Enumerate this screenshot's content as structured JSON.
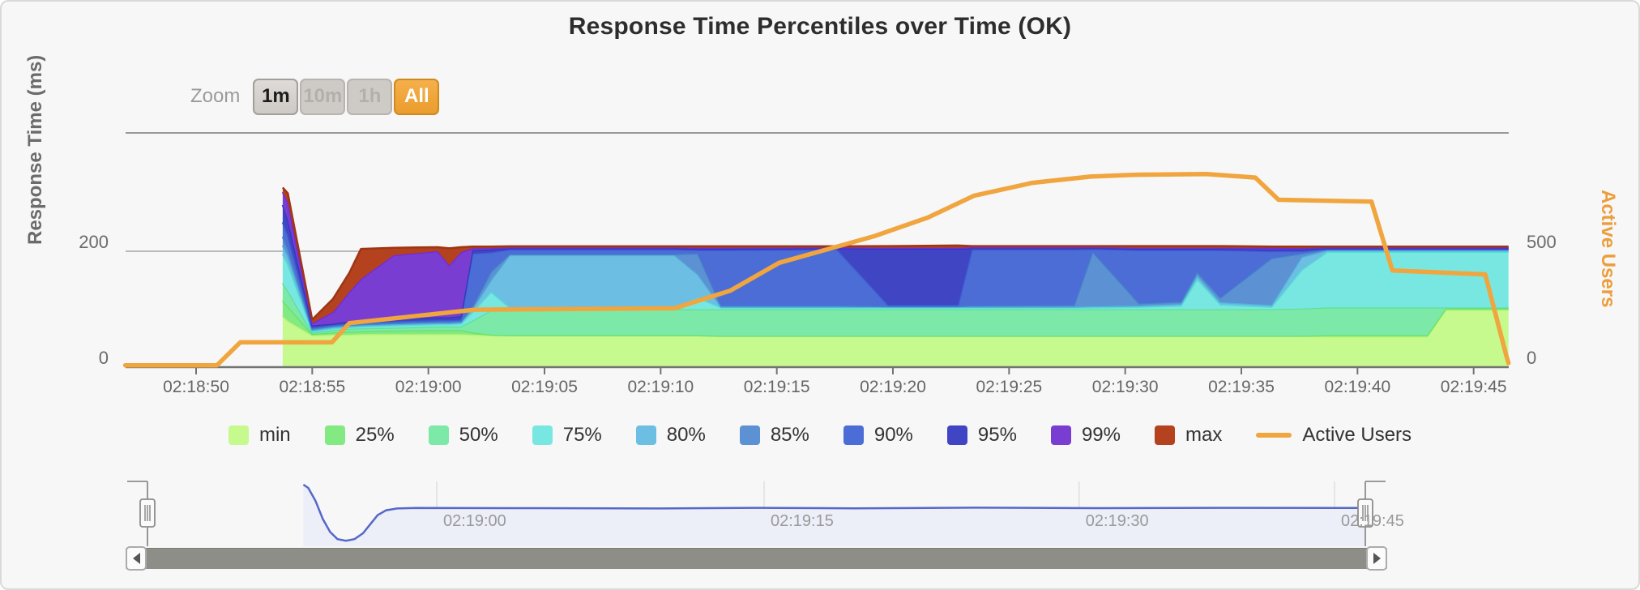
{
  "panel": {
    "title": "Response Time Percentiles over Time (OK)"
  },
  "zoom_controls": {
    "label": "Zoom",
    "buttons": [
      {
        "label": "1m",
        "state": "enabled"
      },
      {
        "label": "10m",
        "state": "disabled"
      },
      {
        "label": "1h",
        "state": "disabled"
      },
      {
        "label": "All",
        "state": "selected"
      }
    ]
  },
  "axes": {
    "left": {
      "title": "Response Time (ms)",
      "ticks": [
        {
          "value": 0,
          "label": "0"
        },
        {
          "value": 200,
          "label": "200"
        }
      ]
    },
    "right": {
      "title": "Active Users",
      "color": "#ec9d3c",
      "ticks": [
        {
          "value": 0,
          "label": "0"
        },
        {
          "value": 500,
          "label": "500"
        }
      ]
    },
    "x": {
      "labels": [
        "02:18:50",
        "02:18:55",
        "02:19:00",
        "02:19:05",
        "02:19:10",
        "02:19:15",
        "02:19:20",
        "02:19:25",
        "02:19:30",
        "02:19:35",
        "02:19:40",
        "02:19:45"
      ],
      "tick_interval_s": 5
    }
  },
  "legend": {
    "items": [
      {
        "label": "min",
        "color": "#c6f98e",
        "edge": "#b4f472"
      },
      {
        "label": "25%",
        "color": "#83e983",
        "edge": "#68e068"
      },
      {
        "label": "50%",
        "color": "#7de9a8",
        "edge": "#5ee093"
      },
      {
        "label": "75%",
        "color": "#79e7e1",
        "edge": "#52ded5"
      },
      {
        "label": "80%",
        "color": "#6cbfe2",
        "edge": "#53b2dc"
      },
      {
        "label": "85%",
        "color": "#5c92d3",
        "edge": "#4583ca"
      },
      {
        "label": "90%",
        "color": "#4c6dd5",
        "edge": "#3c5ed0"
      },
      {
        "label": "95%",
        "color": "#3f45c3",
        "edge": "#3238b8"
      },
      {
        "label": "99%",
        "color": "#7a3dd2",
        "edge": "#6a2ce2"
      },
      {
        "label": "max",
        "color": "#b4421e",
        "edge": "#9e3513"
      }
    ],
    "line_item": {
      "label": "Active Users",
      "color": "#f0a53e"
    }
  },
  "chart_data": {
    "type": "area",
    "title": "Response Time Percentiles over Time (OK)",
    "xlabel": "",
    "ylabel": "Response Time (ms)",
    "ylabel_right": "Active Users",
    "x_unit": "seconds after 02:18:50",
    "x_range": [
      -3.1,
      56.5
    ],
    "y_left_range_ms": [
      0,
      404
    ],
    "y_right_range_users": [
      0,
      1010
    ],
    "grid": "horizontal",
    "legend_position": "bottom",
    "series_labels": [
      "min",
      "25%",
      "50%",
      "75%",
      "80%",
      "85%",
      "90%",
      "95%",
      "99%",
      "max"
    ],
    "percentile_samples": [
      {
        "t": 3.73,
        "v": [
          88,
          115,
          145,
          195,
          210,
          225,
          250,
          280,
          302,
          310
        ]
      },
      {
        "t": 3.95,
        "v": [
          80,
          105,
          132,
          178,
          192,
          205,
          228,
          255,
          285,
          300
        ]
      },
      {
        "t": 5.0,
        "v": [
          55,
          57,
          59,
          62,
          64,
          66,
          69,
          72,
          76,
          82
        ]
      },
      {
        "t": 5.9,
        "v": [
          56,
          60,
          64,
          67,
          69,
          71,
          73,
          75,
          95,
          118
        ]
      },
      {
        "t": 6.6,
        "v": [
          56,
          61,
          66,
          69,
          71,
          73,
          76,
          79,
          130,
          163
        ]
      },
      {
        "t": 7.1,
        "v": [
          57,
          62,
          67,
          70,
          72,
          74,
          77,
          81,
          152,
          204
        ]
      },
      {
        "t": 8.5,
        "v": [
          57,
          63,
          68,
          72,
          74,
          76,
          79,
          84,
          193,
          206
        ]
      },
      {
        "t": 10.4,
        "v": [
          57,
          64,
          70,
          74,
          76,
          78,
          81,
          86,
          200,
          207
        ]
      },
      {
        "t": 10.9,
        "v": [
          57,
          64,
          70,
          74,
          76,
          78,
          81,
          86,
          176,
          205
        ]
      },
      {
        "t": 11.4,
        "v": [
          57,
          64,
          70,
          75,
          77,
          79,
          82,
          88,
          198,
          207
        ]
      },
      {
        "t": 11.9,
        "v": [
          56,
          60,
          80,
          95,
          100,
          104,
          196,
          202,
          205,
          208
        ]
      },
      {
        "t": 12.7,
        "v": [
          55,
          56,
          98,
          130,
          150,
          165,
          198,
          203,
          205.5,
          208
        ]
      },
      {
        "t": 13.5,
        "v": [
          55,
          55,
          100,
          103,
          193,
          195,
          203,
          205,
          206.5,
          208.5
        ]
      },
      {
        "t": 20.6,
        "v": [
          55,
          55,
          100,
          103,
          193,
          195,
          203,
          205,
          206.5,
          208.5
        ]
      },
      {
        "t": 21.6,
        "v": [
          55,
          55,
          100,
          120,
          160,
          196,
          202,
          204,
          206,
          208.5
        ]
      },
      {
        "t": 22.6,
        "v": [
          54,
          54,
          100,
          103,
          104,
          106,
          202,
          204,
          206,
          208.5
        ]
      },
      {
        "t": 27.6,
        "v": [
          54,
          54,
          100,
          103,
          104,
          106,
          203,
          205,
          206.5,
          208.5
        ]
      },
      {
        "t": 29.8,
        "v": [
          54,
          54,
          100,
          103,
          104,
          105,
          107,
          204,
          206,
          209
        ]
      },
      {
        "t": 32.8,
        "v": [
          54,
          54,
          100,
          103,
          104,
          105,
          107,
          204,
          206,
          210
        ]
      },
      {
        "t": 33.4,
        "v": [
          54,
          54,
          100,
          103,
          104,
          106,
          203,
          205,
          207,
          209
        ]
      },
      {
        "t": 37.8,
        "v": [
          54,
          54,
          100,
          103,
          104,
          107,
          203,
          205,
          207,
          209
        ]
      },
      {
        "t": 38.6,
        "v": [
          54,
          54,
          100,
          103,
          105,
          199,
          204,
          205.5,
          207,
          209
        ]
      },
      {
        "t": 40.6,
        "v": [
          54,
          54,
          100,
          104,
          106,
          110,
          202,
          204,
          206,
          209
        ]
      },
      {
        "t": 42.4,
        "v": [
          54,
          54,
          100,
          106,
          109,
          113,
          202,
          204,
          206,
          209
        ]
      },
      {
        "t": 43.1,
        "v": [
          54,
          54,
          100,
          152,
          158,
          164,
          202,
          204,
          206,
          209
        ]
      },
      {
        "t": 44.1,
        "v": [
          54,
          54,
          100,
          108,
          112,
          120,
          202,
          204,
          206,
          209
        ]
      },
      {
        "t": 46.3,
        "v": [
          54,
          54,
          100,
          104,
          107,
          188,
          200,
          203,
          206,
          208
        ]
      },
      {
        "t": 47.6,
        "v": [
          54,
          54,
          101,
          168,
          190,
          196,
          200,
          203,
          205.5,
          208
        ]
      },
      {
        "t": 48.7,
        "v": [
          53,
          55,
          103,
          199,
          201.5,
          203,
          204,
          205,
          206.5,
          208
        ]
      },
      {
        "t": 53.0,
        "v": [
          53,
          55,
          103,
          199,
          201.5,
          203,
          204,
          205,
          206.5,
          208
        ]
      },
      {
        "t": 53.8,
        "v": [
          99,
          101,
          103,
          199,
          201.5,
          203,
          204,
          205,
          206.5,
          208
        ]
      },
      {
        "t": 56.5,
        "v": [
          99,
          101,
          103,
          199,
          201.5,
          203,
          204,
          205,
          206.5,
          208
        ]
      }
    ],
    "active_users": [
      {
        "t": -3.05,
        "users": 8
      },
      {
        "t": 0.9,
        "users": 8
      },
      {
        "t": 1.9,
        "users": 107
      },
      {
        "t": 5.85,
        "users": 107
      },
      {
        "t": 6.6,
        "users": 190
      },
      {
        "t": 12.0,
        "users": 248
      },
      {
        "t": 20.6,
        "users": 254
      },
      {
        "t": 23.0,
        "users": 330
      },
      {
        "t": 25.1,
        "users": 450
      },
      {
        "t": 29.2,
        "users": 565
      },
      {
        "t": 31.5,
        "users": 645
      },
      {
        "t": 33.5,
        "users": 740
      },
      {
        "t": 36.0,
        "users": 795
      },
      {
        "t": 38.5,
        "users": 822
      },
      {
        "t": 40.5,
        "users": 830
      },
      {
        "t": 43.5,
        "users": 833
      },
      {
        "t": 45.6,
        "users": 818
      },
      {
        "t": 46.6,
        "users": 722
      },
      {
        "t": 50.6,
        "users": 714
      },
      {
        "t": 51.5,
        "users": 417
      },
      {
        "t": 55.5,
        "users": 400
      },
      {
        "t": 56.4,
        "users": 52
      },
      {
        "t": 56.5,
        "users": 18
      }
    ]
  },
  "navigator": {
    "series_color": "#5568c8",
    "fill_color": "#eceef8",
    "ticks": [
      {
        "label": "02:19:00",
        "f": 0.2375
      },
      {
        "label": "02:19:15",
        "f": 0.5063
      },
      {
        "label": "02:19:30",
        "f": 0.765
      },
      {
        "label": "02:19:45",
        "f": 0.9747
      }
    ],
    "line": [
      [
        0.128,
        0.05
      ],
      [
        0.132,
        0.1
      ],
      [
        0.138,
        0.3
      ],
      [
        0.144,
        0.58
      ],
      [
        0.15,
        0.78
      ],
      [
        0.156,
        0.89
      ],
      [
        0.163,
        0.915
      ],
      [
        0.17,
        0.89
      ],
      [
        0.177,
        0.8
      ],
      [
        0.183,
        0.66
      ],
      [
        0.189,
        0.52
      ],
      [
        0.196,
        0.445
      ],
      [
        0.205,
        0.418
      ],
      [
        0.22,
        0.41
      ],
      [
        0.32,
        0.412
      ],
      [
        0.42,
        0.418
      ],
      [
        0.5,
        0.408
      ],
      [
        0.58,
        0.415
      ],
      [
        0.68,
        0.405
      ],
      [
        0.78,
        0.412
      ],
      [
        0.88,
        0.408
      ],
      [
        1.0,
        0.41
      ]
    ]
  }
}
